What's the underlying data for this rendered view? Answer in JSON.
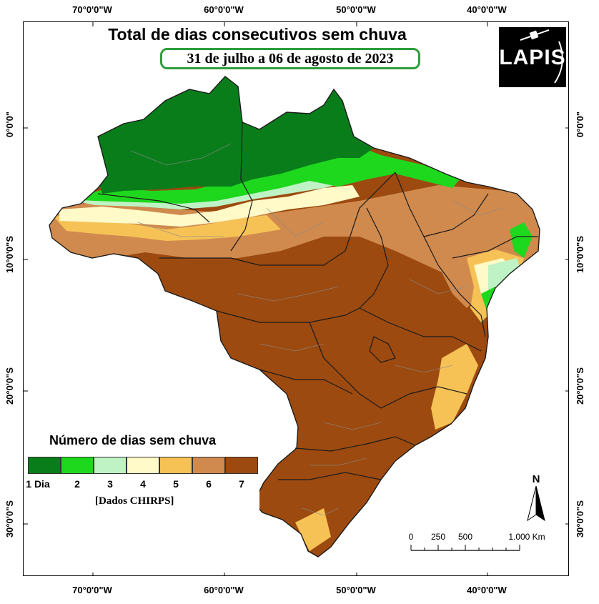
{
  "title": "Total de dias consecutivos sem chuva",
  "period": "31 de julho a 06 de agosto de 2023",
  "logo": {
    "text": "LAPIS",
    "icon": "satellite-icon"
  },
  "axes": {
    "longitude": [
      "70°0'0\"W",
      "60°0'0\"W",
      "50°0'0\"W",
      "40°0'0\"W"
    ],
    "latitude": [
      "0°0'0\"",
      "10°0'0\"S",
      "20°0'0\"S",
      "30°0'0\"S"
    ]
  },
  "legend": {
    "title": "Número de dias sem chuva",
    "items": [
      {
        "label": "1 Dia",
        "color": "#0a7d1b"
      },
      {
        "label": "2",
        "color": "#1ed81e"
      },
      {
        "label": "3",
        "color": "#bff2c5"
      },
      {
        "label": "4",
        "color": "#fffac8"
      },
      {
        "label": "5",
        "color": "#f6c256"
      },
      {
        "label": "6",
        "color": "#d08a4e"
      },
      {
        "label": "7",
        "color": "#9c4a10"
      }
    ],
    "source": "[Dados CHIRPS]"
  },
  "north_arrow": {
    "label": "N"
  },
  "scale_bar": {
    "labels": [
      "0",
      "250",
      "500",
      "1.000 Km"
    ]
  }
}
